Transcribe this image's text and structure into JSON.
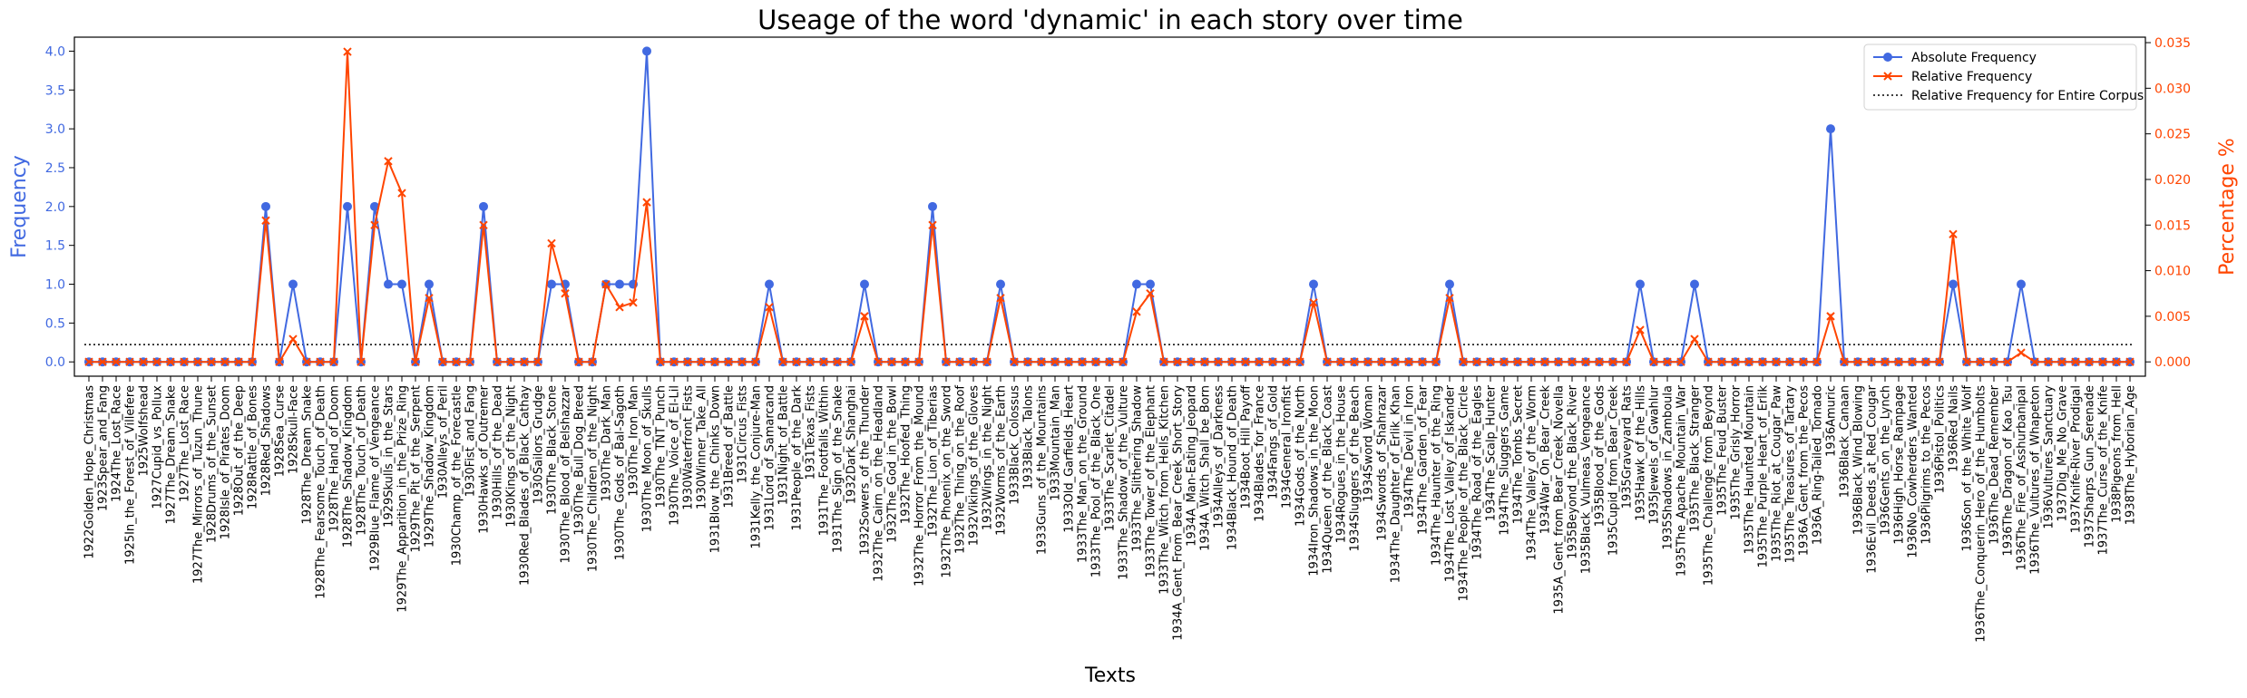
{
  "chart_data": {
    "type": "line",
    "title": "Useage of the word 'dynamic' in each story over time",
    "x_label": "Texts",
    "y_label": "Frequency",
    "y2_label": "Percentage %",
    "categories": [
      "1922Golden_Hope_Christmas",
      "1923Spear_and_Fang",
      "1924The_Lost_Race",
      "1925In_the_Forest_of_Villefere",
      "1925Wolfshead",
      "1927Cupid_vs_Pollux",
      "1927The_Dream_Snake",
      "1927The_Lost_Race",
      "1927The_Mirrors_of_Tuzun_Thune",
      "1928Drums_of_the_Sunset",
      "1928Isle_of_Pirates_Doom",
      "1928Out_of_the_Deep",
      "1928Rattle_of_Bones",
      "1928Red_Shadows",
      "1928Sea_Curse",
      "1928Skull-Face",
      "1928The_Dream_Snake",
      "1928The_Fearsome_Touch_of_Death",
      "1928The_Hand_of_Doom",
      "1928The_Shadow_Kingdom",
      "1928The_Touch_of_Death",
      "1929Blue_Flame_of_Vengeance",
      "1929Skulls_in_the_Stars",
      "1929The_Apparition_in_the_Prize_Ring",
      "1929The_Pit_of_the_Serpent",
      "1929The_Shadow_Kingdom",
      "1930Alleys_of_Peril",
      "1930Champ_of_the_Forecastle",
      "1930Fist_and_Fang",
      "1930Hawks_of_Outremer",
      "1930Hills_of_the_Dead",
      "1930Kings_of_the_Night",
      "1930Red_Blades_of_Black_Cathay",
      "1930Sailors_Grudge",
      "1930The_Black_Stone",
      "1930The_Blood_of_Belshazzar",
      "1930The_Bull_Dog_Breed",
      "1930The_Children_of_the_Night",
      "1930The_Dark_Man",
      "1930The_Gods_of_Bal-Sagoth",
      "1930The_Iron_Man",
      "1930The_Moon_of_Skulls",
      "1930The_TNT_Punch",
      "1930The_Voice_of_El-Lil",
      "1930Waterfront_Fists",
      "1930Winner_Take_All",
      "1931Blow_the_Chinks_Down",
      "1931Breed_of_Battle",
      "1931Circus_Fists",
      "1931Kelly_the_Conjure-Man",
      "1931Lord_of_Samarcand",
      "1931Night_of_Battle",
      "1931People_of_the_Dark",
      "1931Texas_Fists",
      "1931The_Footfalls_Within",
      "1931The_Sign_of_the_Snake",
      "1932Dark_Shanghai",
      "1932Sowers_of_the_Thunder",
      "1932The_Cairn_on_the_Headland",
      "1932The_God_in_the_Bowl",
      "1932The_Hoofed_Thing",
      "1932The_Horror_From_the_Mound",
      "1932The_Lion_of_Tiberias",
      "1932The_Phoenix_on_the_Sword",
      "1932The_Thing_on_the_Roof",
      "1932Vikings_of_the_Gloves",
      "1932Wings_in_the_Night",
      "1932Worms_of_the_Earth",
      "1933Black_Colossus",
      "1933Black_Talons",
      "1933Guns_of_the_Mountains",
      "1933Mountain_Man",
      "1933Old_Garfields_Heart",
      "1933The_Man_on_the_Ground",
      "1933The_Pool_of_the_Black_One",
      "1933The_Scarlet_Citadel",
      "1933The_Shadow_of_the_Vulture",
      "1933The_Slithering_Shadow",
      "1933The_Tower_of_the_Elephant",
      "1933The_Witch_from_Hells_Kitchen",
      "1934A_Gent_From_Bear_Creek_Short_Story",
      "1934A_Man-Eating_Jeopard",
      "1934A_Witch_Shall_be_Born",
      "1934Alleys_of_Darkness",
      "1934Black_Hound_of_Death",
      "1934Boot_Hill_Payoff",
      "1934Blades_for_France",
      "1934Fangs_of_Gold",
      "1934General_Ironfist",
      "1934Gods_of_the_North",
      "1934Iron_Shadows_in_the_Moon",
      "1934Queen_of_the_Black_Coast",
      "1934Rogues_in_the_House",
      "1934Sluggers_of_the_Beach",
      "1934Sword_Woman",
      "1934Swords_of_Shahrazar",
      "1934The_Daughter_of_Erlik_Khan",
      "1934The_Devil_in_Iron",
      "1934The_Garden_of_Fear",
      "1934The_Haunter_of_the_Ring",
      "1934The_Lost_Valley_of_Iskander",
      "1934The_People_of_the_Black_Circle",
      "1934The_Road_of_the_Eagles",
      "1934The_Scalp_Hunter",
      "1934The_Sluggers_Game",
      "1934The_Tombs_Secret",
      "1934The_Valley_of_the_Worm",
      "1934War_On_Bear_Creek",
      "1935A_Gent_from_Bear_Creek_Novella",
      "1935Beyond_the_Black_River",
      "1935Black_Vulmeas_Vengeance",
      "1935Blood_of_the_Gods",
      "1935Cupid_from_Bear_Creek",
      "1935Graveyard_Rats",
      "1935Hawk_of_the_Hills",
      "1935Jewels_of_Gwahlur",
      "1935Shadows_in_Zamboula",
      "1935The_Apache_Mountain_War",
      "1935The_Black_Stranger",
      "1935The_Challenge_from_Beyond",
      "1935The_Feud_Buster",
      "1935The_Grisly_Horror",
      "1935The_Haunted_Mountain",
      "1935The_Purple_Heart_of_Erlik",
      "1935The_Riot_at_Cougar_Paw",
      "1935The_Treasures_of_Tartary",
      "1936A_Gent_from_the_Pecos",
      "1936A_Ring-Tailed_Tornado",
      "1936Amuric",
      "1936Black_Canaan",
      "1936Black_Wind_Blowing",
      "1936Evil_Deeds_at_Red_Cougar",
      "1936Gents_on_the_Lynch",
      "1936High_Horse_Rampage",
      "1936No_Cowherders_Wanted",
      "1936Pilgrims_to_the_Pecos",
      "1936Pistol_Politics",
      "1936Red_Nails",
      "1936Son_of_the_White_Wolf",
      "1936The_Conquerin_Hero_of_the_Humbolts",
      "1936The_Dead_Remember",
      "1936The_Dragon_of_Kao_Tsu",
      "1936The_Fire_of_Asshurbanipal",
      "1936The_Vultures_of_Whapeton",
      "1936Vultures_Sanctuary",
      "1937Dig_Me_No_Grave",
      "1937Knife-River_Prodigal",
      "1937Sharps_Gun_Serenade",
      "1937The_Curse_of_the_Knife",
      "1938Pigeons_from_Hell",
      "1938The_Hyborian_Age"
    ],
    "series": [
      {
        "name": "Absolute Frequency",
        "color": "#4169e1",
        "marker": "circle",
        "values": [
          0,
          0,
          0,
          0,
          0,
          0,
          0,
          0,
          0,
          0,
          0,
          0,
          0,
          2,
          0,
          1,
          0,
          0,
          0,
          2,
          0,
          2,
          1,
          1,
          0,
          1,
          0,
          0,
          0,
          2,
          0,
          0,
          0,
          0,
          1,
          1,
          0,
          0,
          1,
          1,
          1,
          4,
          0,
          0,
          0,
          0,
          0,
          0,
          0,
          0,
          1,
          0,
          0,
          0,
          0,
          0,
          0,
          1,
          0,
          0,
          0,
          0,
          2,
          0,
          0,
          0,
          0,
          1,
          0,
          0,
          0,
          0,
          0,
          0,
          0,
          0,
          0,
          1,
          1,
          0,
          0,
          0,
          0,
          0,
          0,
          0,
          0,
          0,
          0,
          0,
          1,
          0,
          0,
          0,
          0,
          0,
          0,
          0,
          0,
          0,
          1,
          0,
          0,
          0,
          0,
          0,
          0,
          0,
          0,
          0,
          0,
          0,
          0,
          0,
          1,
          0,
          0,
          0,
          1,
          0,
          0,
          0,
          0,
          0,
          0,
          0,
          0,
          0,
          3,
          0,
          0,
          0,
          0,
          0,
          0,
          0,
          0,
          1,
          0,
          0,
          0,
          0,
          1,
          0,
          0,
          0,
          0,
          0,
          0,
          0,
          0
        ]
      },
      {
        "name": "Relative Frequency",
        "color": "#ff4500",
        "marker": "x",
        "axis": "y2",
        "values": [
          0,
          0,
          0,
          0,
          0,
          0,
          0,
          0,
          0,
          0,
          0,
          0,
          0,
          0.0155,
          0,
          0.0025,
          0,
          0,
          0,
          0.034,
          0,
          0.015,
          0.022,
          0.0185,
          0,
          0.007,
          0,
          0,
          0,
          0.015,
          0,
          0,
          0,
          0,
          0.013,
          0.0075,
          0,
          0,
          0.0085,
          0.006,
          0.0065,
          0.0175,
          0,
          0,
          0,
          0,
          0,
          0,
          0,
          0,
          0.006,
          0,
          0,
          0,
          0,
          0,
          0,
          0.005,
          0,
          0,
          0,
          0,
          0.015,
          0,
          0,
          0,
          0,
          0.007,
          0,
          0,
          0,
          0,
          0,
          0,
          0,
          0,
          0,
          0.0055,
          0.0075,
          0,
          0,
          0,
          0,
          0,
          0,
          0,
          0,
          0,
          0,
          0,
          0.0065,
          0,
          0,
          0,
          0,
          0,
          0,
          0,
          0,
          0,
          0.007,
          0,
          0,
          0,
          0,
          0,
          0,
          0,
          0,
          0,
          0,
          0,
          0,
          0,
          0.0035,
          0,
          0,
          0,
          0.0025,
          0,
          0,
          0,
          0,
          0,
          0,
          0,
          0,
          0,
          0.005,
          0,
          0,
          0,
          0,
          0,
          0,
          0,
          0,
          0.014,
          0,
          0,
          0,
          0,
          0.001,
          0,
          0,
          0,
          0,
          0,
          0,
          0,
          0
        ]
      }
    ],
    "reference_line": {
      "name": "Relative Frequency for Entire Corpus",
      "value": 0.0019,
      "axis": "y2",
      "color": "#000000"
    },
    "ylim": [
      -0.184,
      4.18
    ],
    "yticks": [
      {
        "value": 0,
        "label": "0.0"
      },
      {
        "value": 0.5,
        "label": "0.5"
      },
      {
        "value": 1,
        "label": "1.0"
      },
      {
        "value": 1.5,
        "label": "1.5"
      },
      {
        "value": 2,
        "label": "2.0"
      },
      {
        "value": 2.5,
        "label": "2.5"
      },
      {
        "value": 3,
        "label": "3.0"
      },
      {
        "value": 3.5,
        "label": "3.5"
      },
      {
        "value": 4,
        "label": "4.0"
      }
    ],
    "y2lim": [
      -0.00157,
      0.0356
    ],
    "y2ticks": [
      {
        "value": 0,
        "label": "0.000"
      },
      {
        "value": 0.005,
        "label": "0.005"
      },
      {
        "value": 0.01,
        "label": "0.010"
      },
      {
        "value": 0.015,
        "label": "0.015"
      },
      {
        "value": 0.02,
        "label": "0.020"
      },
      {
        "value": 0.025,
        "label": "0.025"
      },
      {
        "value": 0.03,
        "label": "0.030"
      },
      {
        "value": 0.035,
        "label": "0.035"
      }
    ],
    "legend": "upper right",
    "grid": false
  }
}
